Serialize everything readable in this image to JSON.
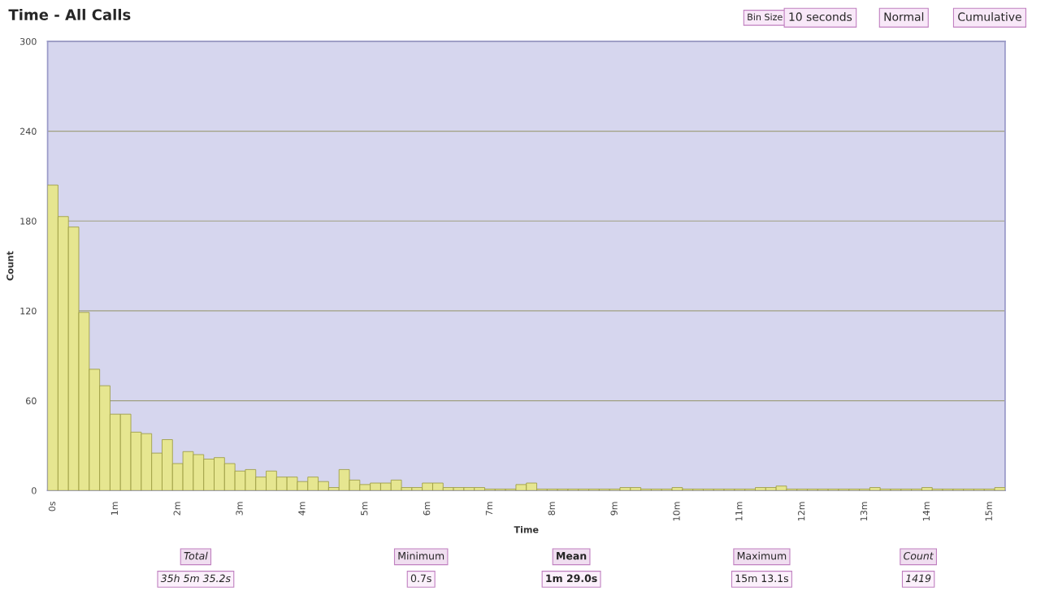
{
  "chart_data": {
    "type": "bar",
    "title": "Time - All Calls",
    "xlabel": "Time",
    "ylabel": "Count",
    "categories": [
      "0s",
      null,
      null,
      null,
      null,
      null,
      "1m",
      null,
      null,
      null,
      null,
      null,
      "2m",
      null,
      null,
      null,
      null,
      null,
      "3m",
      null,
      null,
      null,
      null,
      null,
      "4m",
      null,
      null,
      null,
      null,
      null,
      "5m",
      null,
      null,
      null,
      null,
      null,
      "6m",
      null,
      null,
      null,
      null,
      null,
      "7m",
      null,
      null,
      null,
      null,
      null,
      "8m",
      null,
      null,
      null,
      null,
      null,
      "9m",
      null,
      null,
      null,
      null,
      null,
      "10m",
      null,
      null,
      null,
      null,
      null,
      "11m",
      null,
      null,
      null,
      null,
      null,
      "12m",
      null,
      null,
      null,
      null,
      null,
      "13m",
      null,
      null,
      null,
      null,
      null,
      "14m",
      null,
      null,
      null,
      null,
      null,
      "15m",
      null
    ],
    "values": [
      204,
      183,
      176,
      119,
      81,
      70,
      51,
      51,
      39,
      38,
      25,
      34,
      18,
      26,
      24,
      21,
      22,
      18,
      13,
      14,
      9,
      13,
      9,
      9,
      6,
      9,
      6,
      2,
      14,
      7,
      4,
      5,
      5,
      7,
      2,
      2,
      5,
      5,
      2,
      2,
      2,
      2,
      1,
      1,
      1,
      4,
      5,
      1,
      1,
      1,
      1,
      1,
      1,
      1,
      1,
      2,
      2,
      1,
      1,
      1,
      2,
      1,
      1,
      1,
      1,
      1,
      1,
      1,
      2,
      2,
      3,
      1,
      1,
      1,
      1,
      1,
      1,
      1,
      1,
      2,
      1,
      1,
      1,
      1,
      2,
      1,
      1,
      1,
      1,
      1,
      1,
      2
    ],
    "color": "#e6e690",
    "ylim": [
      0,
      300
    ],
    "yticks": [
      0,
      60,
      120,
      180,
      240,
      300
    ],
    "grid": "y",
    "annotations": [
      "Bin Size",
      "10 seconds",
      "Normal",
      "Cumulative",
      "Total",
      "Minimum",
      "Mean",
      "Maximum",
      "Count",
      "35h 5m 35.2s",
      "0.7s",
      "1m 29.0s",
      "15m 13.1s",
      "1419"
    ]
  }
}
